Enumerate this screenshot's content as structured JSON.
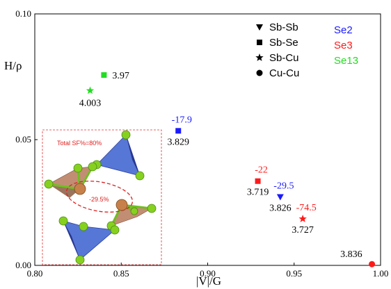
{
  "chart_data": {
    "type": "scatter",
    "xlabel": "|V|/G",
    "ylabel": "H/ρ",
    "xlim": [
      0.8,
      1.0
    ],
    "ylim": [
      0.0,
      0.1
    ],
    "xticks": [
      "0.80",
      "0.85",
      "0.90",
      "0.95",
      "1.00"
    ],
    "yticks": [
      "0.00",
      "0.05",
      "0.10"
    ],
    "xtick_values": [
      0.8,
      0.85,
      0.9,
      0.95,
      1.0
    ],
    "ytick_values": [
      0.0,
      0.05,
      0.1
    ],
    "grid": false,
    "legend_position": "top-right",
    "marker_legend": [
      {
        "marker": "triangle-down",
        "label": "Sb-Sb"
      },
      {
        "marker": "square",
        "label": "Sb-Se"
      },
      {
        "marker": "star",
        "label": "Sb-Cu"
      },
      {
        "marker": "circle",
        "label": "Cu-Cu"
      }
    ],
    "color_legend": [
      {
        "label": "Se2",
        "color": "#1a1aff"
      },
      {
        "label": "Se3",
        "color": "#ff1a1a"
      },
      {
        "label": "Se13",
        "color": "#22dd22"
      }
    ],
    "points": [
      {
        "x": 0.832,
        "y": 0.0695,
        "marker": "star",
        "color": "#22dd22",
        "label": "4.003",
        "value_label": ""
      },
      {
        "x": 0.84,
        "y": 0.0757,
        "marker": "square",
        "color": "#22dd22",
        "label": "3.97",
        "value_label": ""
      },
      {
        "x": 0.883,
        "y": 0.0535,
        "marker": "square",
        "color": "#1a1aff",
        "label": "3.829",
        "value_label": "-17.9"
      },
      {
        "x": 0.929,
        "y": 0.0335,
        "marker": "square",
        "color": "#ff1a1a",
        "label": "3.719",
        "value_label": "-22"
      },
      {
        "x": 0.942,
        "y": 0.0272,
        "marker": "triangle-down",
        "color": "#1a1aff",
        "label": "3.826",
        "value_label": "-29.5"
      },
      {
        "x": 0.955,
        "y": 0.0185,
        "marker": "star",
        "color": "#ff1a1a",
        "label": "3.727",
        "value_label": "-74.5"
      },
      {
        "x": 0.995,
        "y": 0.0005,
        "marker": "circle",
        "color": "#ff1a1a",
        "label": "3.836",
        "value_label": ""
      }
    ],
    "inset": {
      "title": "Total SF%=80%",
      "annotation": "-29.5%"
    }
  }
}
